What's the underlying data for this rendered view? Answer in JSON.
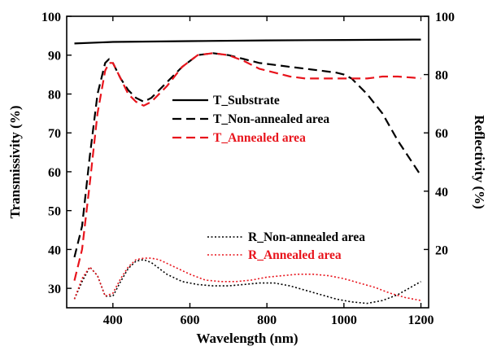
{
  "chart_data": {
    "type": "line",
    "xlabel": "Wavelength (nm)",
    "ylabel_left": "Transmissivity (%)",
    "ylabel_right": "Reflectivity (%)",
    "xlim": [
      280,
      1220
    ],
    "ylim_left": [
      25,
      100
    ],
    "ylim_right": [
      0,
      100
    ],
    "x_ticks": [
      400,
      600,
      800,
      1000,
      1200
    ],
    "y_ticks_left": [
      30,
      40,
      50,
      60,
      70,
      80,
      90,
      100
    ],
    "y_ticks_right": [
      20,
      40,
      60,
      80,
      100
    ],
    "grid": false,
    "colors": {
      "black": "#000000",
      "red": "#e8141c"
    },
    "series": [
      {
        "name": "T_Substrate",
        "axis": "left",
        "color": "#000000",
        "style": "solid",
        "x": [
          300,
          400,
          600,
          800,
          1000,
          1200
        ],
        "y": [
          93,
          93.4,
          93.6,
          93.8,
          93.9,
          94
        ]
      },
      {
        "name": "T_Non-annealed area",
        "axis": "left",
        "color": "#000000",
        "style": "dashed",
        "x": [
          300,
          320,
          340,
          360,
          380,
          390,
          400,
          420,
          440,
          460,
          480,
          500,
          540,
          580,
          620,
          660,
          700,
          740,
          780,
          820,
          860,
          900,
          940,
          980,
          1000,
          1020,
          1060,
          1100,
          1140,
          1180,
          1200
        ],
        "y": [
          38,
          46,
          64,
          80,
          88,
          89,
          88,
          84,
          81,
          79,
          78,
          79,
          83,
          87,
          90,
          90.5,
          90,
          89,
          88,
          87.5,
          87,
          86.5,
          86,
          85.5,
          85,
          84,
          80,
          75,
          68,
          62,
          59
        ]
      },
      {
        "name": "T_Annealed area",
        "axis": "left",
        "color": "#e8141c",
        "style": "dashed",
        "x": [
          300,
          320,
          340,
          360,
          380,
          390,
          400,
          420,
          440,
          460,
          480,
          500,
          540,
          580,
          620,
          660,
          700,
          740,
          780,
          820,
          860,
          900,
          940,
          980,
          1020,
          1060,
          1100,
          1140,
          1180,
          1200
        ],
        "y": [
          32,
          40,
          57,
          75,
          86,
          88,
          88,
          84,
          80,
          78,
          77,
          78,
          82,
          87,
          90,
          90.5,
          90,
          88.5,
          86.5,
          85.5,
          84.5,
          84,
          84,
          84,
          84,
          84,
          84.5,
          84.5,
          84.2,
          84
        ]
      },
      {
        "name": "R_Non-annealed area",
        "axis": "right",
        "color": "#000000",
        "style": "dotted",
        "x": [
          300,
          320,
          340,
          360,
          380,
          400,
          420,
          440,
          460,
          480,
          500,
          540,
          580,
          620,
          660,
          700,
          740,
          780,
          820,
          860,
          900,
          940,
          980,
          1020,
          1060,
          1100,
          1140,
          1180,
          1200
        ],
        "y": [
          3,
          9,
          14,
          11,
          4,
          4,
          9,
          13.5,
          16,
          16.5,
          15.5,
          11.5,
          9,
          8,
          7.5,
          7.5,
          8,
          8.5,
          8.5,
          7.5,
          6,
          4.5,
          3,
          2,
          1.5,
          2.5,
          4.5,
          7.5,
          9
        ]
      },
      {
        "name": "R_Annealed area",
        "axis": "right",
        "color": "#e8141c",
        "style": "dotted",
        "x": [
          300,
          320,
          340,
          360,
          380,
          400,
          420,
          440,
          460,
          480,
          500,
          520,
          560,
          600,
          640,
          680,
          720,
          760,
          800,
          840,
          880,
          920,
          960,
          1000,
          1040,
          1080,
          1120,
          1160,
          1200
        ],
        "y": [
          3,
          10,
          14,
          11,
          4,
          5,
          10,
          14,
          16.5,
          17,
          17,
          16.5,
          14,
          11.5,
          9.5,
          9,
          9,
          9.5,
          10.5,
          11,
          11.5,
          11.5,
          11,
          10,
          8.5,
          7,
          5,
          3.5,
          2.5
        ]
      }
    ],
    "legend": [
      {
        "label": "T_Substrate",
        "color": "#000000",
        "style": "solid"
      },
      {
        "label": "T_Non-annealed area",
        "color": "#000000",
        "style": "dashed"
      },
      {
        "label": "T_Annealed area",
        "color": "#e8141c",
        "style": "dashed"
      },
      {
        "label": "R_Non-annealed area",
        "color": "#000000",
        "style": "dotted"
      },
      {
        "label": "R_Annealed area",
        "color": "#e8141c",
        "style": "dotted"
      }
    ]
  }
}
